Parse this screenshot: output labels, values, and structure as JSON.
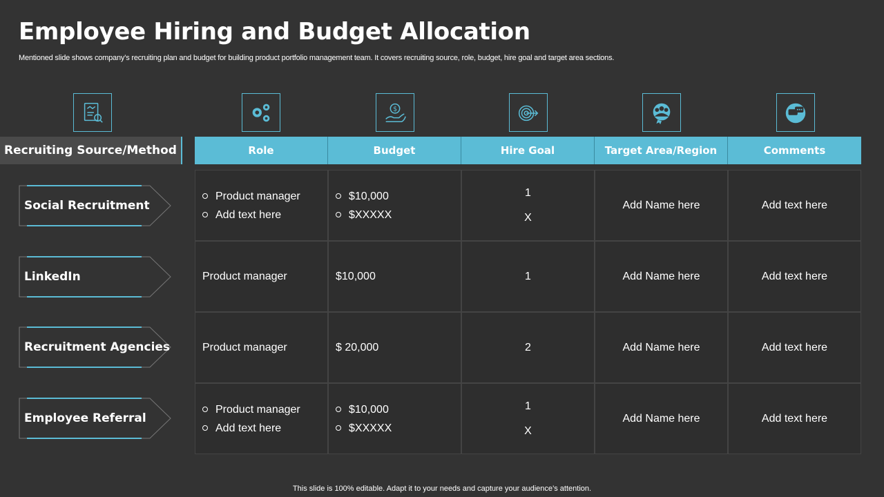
{
  "slide": {
    "title": "Employee Hiring and Budget Allocation",
    "subtitle": "Mentioned slide shows company’s recruiting plan and budget for building product portfolio management team. It covers recruiting  source, role, budget, hire goal and target area sections.",
    "footer": "This slide is 100% editable. Adapt it to your needs and capture your audience’s attention."
  },
  "colors": {
    "background": "#333333",
    "accent": "#5bbcd6",
    "row_bg": "#2e2e2e"
  },
  "icons": [
    "handshake-document-icon",
    "gears-icon",
    "budget-hand-icon",
    "target-icon",
    "team-badge-icon",
    "chat-bubbles-icon"
  ],
  "table": {
    "source_header": "Recruiting Source/Method",
    "headers": [
      "Role",
      "Budget",
      "Hire Goal",
      "Target Area/Region",
      "Comments"
    ],
    "rows": [
      {
        "source": "Social Recruitment",
        "role": [
          "Product manager",
          "Add text here"
        ],
        "budget": [
          "$10,000",
          "$XXXXX"
        ],
        "hire_goal": [
          "1",
          "X"
        ],
        "target": "Add Name here",
        "comments": "Add text here"
      },
      {
        "source": "LinkedIn",
        "role": "Product manager",
        "budget": "$10,000",
        "hire_goal": "1",
        "target": "Add Name here",
        "comments": "Add text here"
      },
      {
        "source": "Recruitment Agencies",
        "role": "Product manager",
        "budget": "$ 20,000",
        "hire_goal": "2",
        "target": "Add Name here",
        "comments": "Add text here"
      },
      {
        "source": "Employee Referral",
        "role": [
          "Product manager",
          "Add text here"
        ],
        "budget": [
          "$10,000",
          "$XXXXX"
        ],
        "hire_goal": [
          "1",
          "X"
        ],
        "target": "Add Name here",
        "comments": "Add text here"
      }
    ]
  }
}
